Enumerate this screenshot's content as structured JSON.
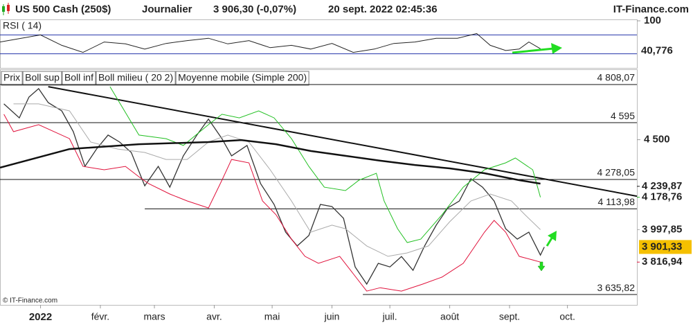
{
  "header": {
    "instrument": "US 500 Cash (250$)",
    "period": "Journalier",
    "quote": "3 906,30 (-0,07%)",
    "datetime": "20 sept. 2022 02:45:36",
    "brand": "IT-Finance.com"
  },
  "footer": "© IT-Finance.com",
  "chart_data": [
    {
      "type": "line",
      "title": "RSI ( 14)",
      "ylim": [
        0,
        103
      ],
      "yticks": [
        {
          "value": 100,
          "label": "100"
        }
      ],
      "levels": [
        70,
        30
      ],
      "level_color": "#2233aa",
      "xlim": [
        -20,
        310
      ],
      "series": [
        {
          "name": "RSI",
          "color": "#222222",
          "x": [
            -20,
            -9,
            1,
            12,
            23,
            34,
            45,
            55,
            66,
            77,
            88,
            98,
            109,
            120,
            131,
            141,
            152,
            163,
            174,
            184,
            195,
            206,
            217,
            227,
            234,
            242,
            249,
            254,
            260
          ],
          "values": [
            55,
            63,
            70,
            48,
            33,
            55,
            51,
            40,
            52,
            58,
            63,
            51,
            58,
            43,
            48,
            40,
            52,
            33,
            40,
            52,
            55,
            63,
            63,
            73,
            48,
            37,
            40,
            55,
            40.776
          ],
          "value_labels": {
            "28": "40,776"
          }
        }
      ]
    },
    {
      "type": "line",
      "legend_title": "Prix",
      "xlim": [
        -20,
        310
      ],
      "ylim": [
        3578,
        4893
      ],
      "yticks": [
        {
          "value": 4500,
          "label": "4 500"
        }
      ],
      "xticks": [
        {
          "value": 1,
          "label": "2022"
        },
        {
          "value": 32,
          "label": "févr."
        },
        {
          "value": 60,
          "label": "mars"
        },
        {
          "value": 91,
          "label": "avr."
        },
        {
          "value": 121,
          "label": "mai"
        },
        {
          "value": 152,
          "label": "juin"
        },
        {
          "value": 182,
          "label": "juil."
        },
        {
          "value": 213,
          "label": "août"
        },
        {
          "value": 244,
          "label": "sept."
        },
        {
          "value": 274,
          "label": "oct."
        }
      ],
      "series": [
        {
          "name": "Prix",
          "color": "#333333",
          "width": 1.3,
          "x": [
            -18,
            -10,
            -5,
            0,
            5,
            12,
            18,
            24,
            30,
            36,
            42,
            48,
            55,
            62,
            68,
            75,
            82,
            88,
            95,
            100,
            108,
            115,
            122,
            128,
            134,
            140,
            146,
            152,
            158,
            164,
            170,
            176,
            182,
            188,
            194,
            200,
            206,
            212,
            218,
            224,
            230,
            236,
            242,
            248,
            254,
            260,
            262
          ],
          "values": [
            4700,
            4622,
            4738,
            4785,
            4707,
            4661,
            4545,
            4351,
            4448,
            4526,
            4487,
            4429,
            4243,
            4351,
            4235,
            4410,
            4526,
            4615,
            4506,
            4410,
            4468,
            4255,
            4139,
            3984,
            3907,
            3965,
            4139,
            4127,
            4061,
            3790,
            3694,
            3810,
            3790,
            3848,
            3771,
            3907,
            4023,
            4119,
            4158,
            4282,
            4235,
            4158,
            4003,
            3945,
            3984,
            3856,
            3901
          ]
        },
        {
          "name": "Boll sup",
          "color": "#22c022",
          "width": 1,
          "x": [
            37,
            52,
            66,
            75,
            88,
            95,
            104,
            114,
            122,
            131,
            140,
            148,
            159,
            166,
            175,
            179,
            186,
            191,
            198,
            209,
            220,
            231,
            242,
            247,
            256,
            260
          ],
          "values": [
            4796,
            4526,
            4506,
            4468,
            4584,
            4642,
            4622,
            4661,
            4622,
            4506,
            4351,
            4235,
            4216,
            4274,
            4313,
            4158,
            4003,
            3926,
            3945,
            4081,
            4235,
            4332,
            4371,
            4398,
            4332,
            4179
          ]
        },
        {
          "name": "Boll inf",
          "color": "#e0103a",
          "width": 1,
          "x": [
            -18,
            -13,
            0,
            16,
            23,
            34,
            45,
            52,
            57,
            68,
            77,
            88,
            95,
            100,
            109,
            116,
            123,
            131,
            138,
            145,
            156,
            163,
            170,
            177,
            188,
            199,
            209,
            220,
            231,
            236,
            242,
            249,
            256,
            260
          ],
          "values": [
            4642,
            4545,
            4584,
            4506,
            4351,
            4332,
            4351,
            4293,
            4255,
            4197,
            4158,
            4119,
            4274,
            4390,
            4371,
            4158,
            4081,
            3945,
            3849,
            3810,
            3849,
            3752,
            3655,
            3674,
            3655,
            3694,
            3733,
            3810,
            3984,
            4050,
            3984,
            3849,
            3829,
            3817
          ]
        },
        {
          "name": "Boll milieu ( 20 2)",
          "color": "#aaaaaa",
          "width": 1,
          "x": [
            -13,
            0,
            16,
            27,
            41,
            55,
            66,
            77,
            88,
            98,
            109,
            120,
            131,
            141,
            152,
            159,
            170,
            181,
            191,
            202,
            213,
            224,
            234,
            245,
            252,
            260
          ],
          "values": [
            4700,
            4700,
            4661,
            4487,
            4448,
            4429,
            4390,
            4390,
            4487,
            4526,
            4487,
            4332,
            4158,
            3984,
            4023,
            4003,
            3907,
            3849,
            3868,
            3907,
            4042,
            4158,
            4197,
            4158,
            4081,
            3998
          ]
        },
        {
          "name": "Moyenne mobile (Simple 200)",
          "color": "#111111",
          "width": 2.5,
          "x": [
            -20,
            16,
            52,
            88,
            105,
            123,
            141,
            159,
            177,
            195,
            213,
            231,
            249,
            260
          ],
          "values": [
            4344,
            4448,
            4475,
            4487,
            4498,
            4475,
            4437,
            4410,
            4383,
            4359,
            4340,
            4313,
            4274,
            4255
          ]
        }
      ],
      "trendline": {
        "x": [
          5,
          310
        ],
        "values": [
          4796,
          4185
        ],
        "color": "#111111"
      },
      "levels": [
        {
          "value": 4808.07,
          "label": "4 808,07"
        },
        {
          "value": 4595,
          "label": "4 595"
        },
        {
          "value": 4278.05,
          "label": "4 278,05"
        },
        {
          "value": 4113.98,
          "label": "4 113,98",
          "start": 55
        },
        {
          "value": 3635.82,
          "label": "3 635,82",
          "start": 168
        }
      ],
      "price_labels": [
        {
          "value": 4239.87,
          "label": "4 239,87",
          "color": "#111111"
        },
        {
          "value": 4178.76,
          "label": "4 178,76",
          "color": "#22b022"
        },
        {
          "value": 3997.85,
          "label": "3 997,85",
          "color": "#aaaaaa"
        },
        {
          "value": 3901.33,
          "label": "3 901,33",
          "color": "#111111",
          "background": "#f5c000"
        },
        {
          "value": 3816.94,
          "label": "3 816,94",
          "color": "#e0103a"
        }
      ]
    }
  ]
}
